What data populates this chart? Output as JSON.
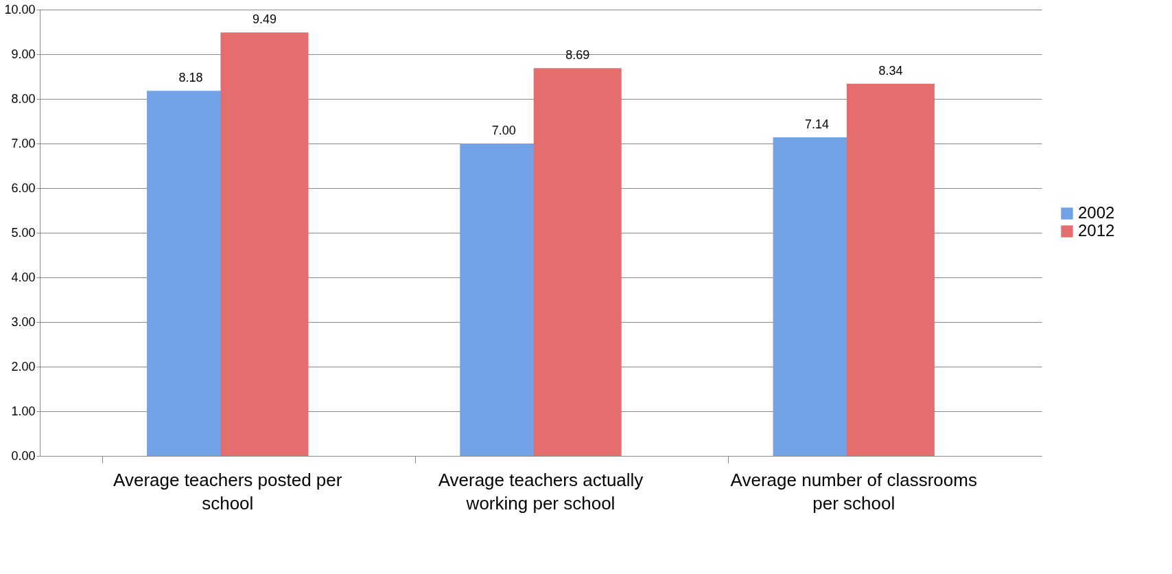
{
  "chart_data": {
    "type": "bar",
    "categories": [
      "Average teachers posted per school",
      "Average teachers actually working per school",
      "Average number of classrooms per school"
    ],
    "series": [
      {
        "name": "2002",
        "color": "#72a2e6",
        "values": [
          8.18,
          7.0,
          7.14
        ],
        "value_labels": [
          "8.18",
          "7.00",
          "7.14"
        ]
      },
      {
        "name": "2012",
        "color": "#e46e6e",
        "values": [
          9.49,
          8.69,
          8.34
        ],
        "value_labels": [
          "9.49",
          "8.69",
          "8.34"
        ]
      }
    ],
    "ylim": [
      0,
      10
    ],
    "yticks": [
      {
        "value": 0,
        "label": "0.00"
      },
      {
        "value": 1,
        "label": "1.00"
      },
      {
        "value": 2,
        "label": "2.00"
      },
      {
        "value": 3,
        "label": "3.00"
      },
      {
        "value": 4,
        "label": "4.00"
      },
      {
        "value": 5,
        "label": "5.00"
      },
      {
        "value": 6,
        "label": "6.00"
      },
      {
        "value": 7,
        "label": "7.00"
      },
      {
        "value": 8,
        "label": "8.00"
      },
      {
        "value": 9,
        "label": "9.00"
      },
      {
        "value": 10,
        "label": "10.00"
      }
    ],
    "grid": "y",
    "legend": "right"
  }
}
